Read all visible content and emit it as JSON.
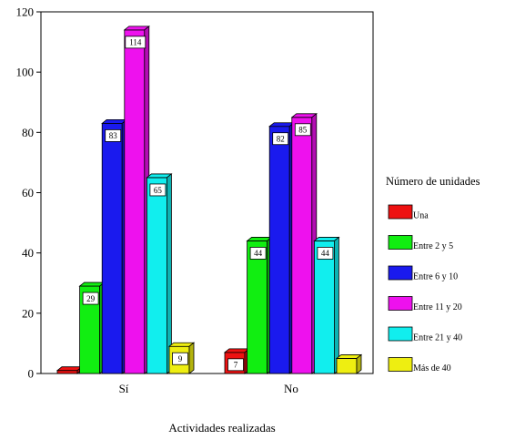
{
  "chart_data": {
    "type": "bar",
    "categories": [
      "Sí",
      "No"
    ],
    "series": [
      {
        "name": "Una",
        "color": "#ee1111",
        "values": [
          1,
          7
        ],
        "labels": [
          "",
          "7"
        ]
      },
      {
        "name": "Entre 2 y 5",
        "color": "#11ee11",
        "values": [
          29,
          44
        ],
        "labels": [
          "29",
          "44"
        ]
      },
      {
        "name": "Entre 6 y 10",
        "color": "#1a1aee",
        "values": [
          83,
          82
        ],
        "labels": [
          "83",
          "82"
        ]
      },
      {
        "name": "Entre 11 y 20",
        "color": "#ee11ee",
        "values": [
          114,
          85
        ],
        "labels": [
          "114",
          "85"
        ]
      },
      {
        "name": "Entre 21 y 40",
        "color": "#11eeee",
        "values": [
          65,
          44
        ],
        "labels": [
          "65",
          "44"
        ]
      },
      {
        "name": "Más de 40",
        "color": "#eeee11",
        "values": [
          9,
          5
        ],
        "labels": [
          "9",
          ""
        ]
      }
    ],
    "xlabel": "Actividades realizadas",
    "ylabel": "",
    "ylim": [
      0,
      120
    ],
    "yticks": [
      "0",
      "20",
      "40",
      "60",
      "80",
      "100",
      "120"
    ],
    "legend_title": "Número de unidades",
    "legend_position": "right",
    "grid": false,
    "style": "3d-bar"
  }
}
